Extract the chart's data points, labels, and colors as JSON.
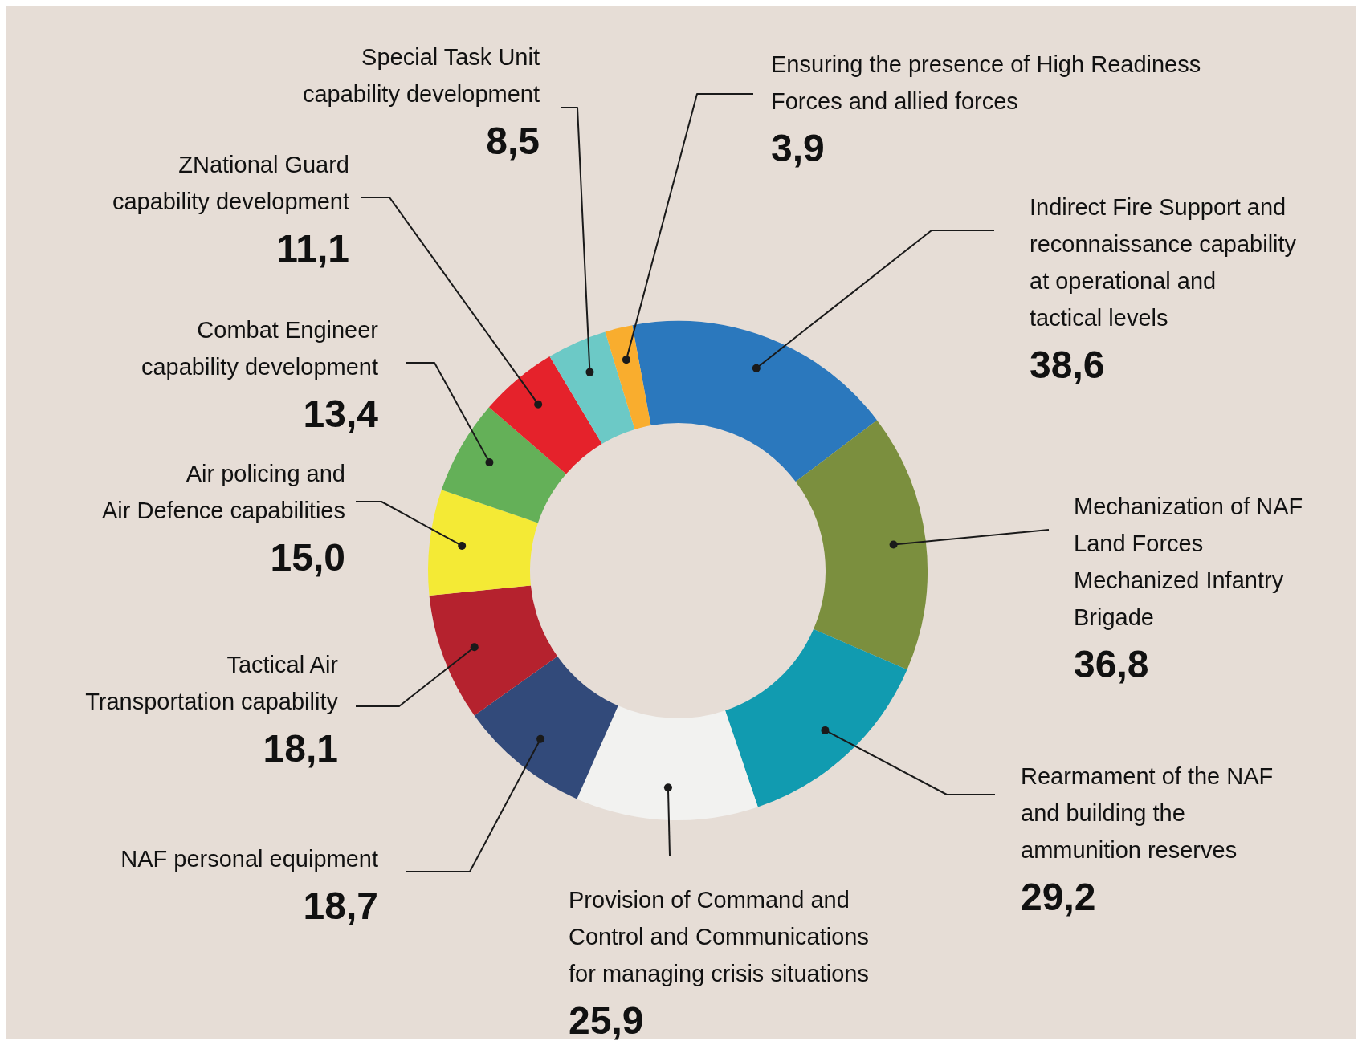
{
  "chart_data": {
    "type": "donut",
    "categories": [
      "Indirect Fire Support and\nreconnaissance capability\nat operational and\ntactical levels",
      "Mechanization of NAF\nLand Forces\nMechanized Infantry\nBrigade",
      "Rearmament of the NAF\nand building the\nammunition reserves",
      "Provision of Command and\nControl and Communications\nfor managing crisis situations",
      "NAF personal equipment",
      "Tactical Air\nTransportation capability",
      "Air policing and\nAir Defence capabilities",
      "Combat Engineer\ncapability development",
      "ZNational Guard\ncapability development",
      "Special Task Unit\ncapability development",
      "Ensuring the presence of High Readiness\nForces and allied forces"
    ],
    "values": [
      38.6,
      36.8,
      29.2,
      25.9,
      18.7,
      18.1,
      15.0,
      13.4,
      11.1,
      8.5,
      3.9
    ],
    "value_labels": [
      "38,6",
      "36,8",
      "29,2",
      "25,9",
      "18,7",
      "18,1",
      "15,0",
      "13,4",
      "11,1",
      "8,5",
      "3,9"
    ],
    "colors": [
      "#2b78bd",
      "#7b8f3e",
      "#119bb0",
      "#f2f2f0",
      "#324a7a",
      "#b5222e",
      "#f4ea35",
      "#64b058",
      "#e5222b",
      "#6cc9c6",
      "#f9ad2e"
    ]
  }
}
